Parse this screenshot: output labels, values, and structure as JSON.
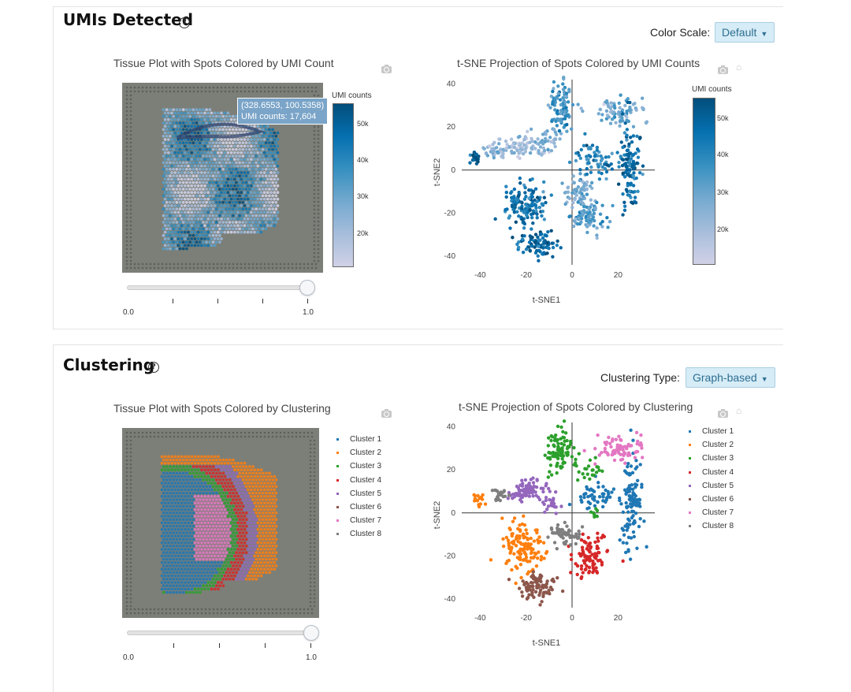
{
  "umi": {
    "title": "UMIs Detected",
    "help_glyph": "?",
    "color_scale_label": "Color Scale:",
    "color_scale_value": "Default",
    "tissue_plot_title": "Tissue Plot with Spots Colored by UMI Count",
    "tsne_plot_title": "t-SNE Projection of Spots Colored by UMI Counts",
    "colorbar_title": "UMI counts",
    "colorbar_ticks": [
      "50k",
      "40k",
      "30k",
      "20k"
    ],
    "tsne_colorbar_ticks": [
      "50k",
      "40k",
      "30k",
      "20k"
    ],
    "tooltip_coords": "(328.6553, 100.5358)",
    "tooltip_value": "UMI counts: 17,604",
    "slider_min": "0.0",
    "slider_max": "1.0",
    "slider_value": 1.0,
    "colors": [
      "#d0d1e6",
      "#a6bddb",
      "#74a9cf",
      "#3690c0",
      "#0570b0",
      "#034e7b"
    ]
  },
  "clustering": {
    "title": "Clustering",
    "help_glyph": "?",
    "type_label": "Clustering Type:",
    "type_value": "Graph-based",
    "tissue_plot_title": "Tissue Plot with Spots Colored by Clustering",
    "tsne_plot_title": "t-SNE Projection of Spots Colored by Clustering",
    "slider_min": "0.0",
    "slider_max": "1.0",
    "slider_value": 1.0,
    "clusters": [
      {
        "name": "Cluster 1",
        "color": "#1f77b4"
      },
      {
        "name": "Cluster 2",
        "color": "#ff7f0e"
      },
      {
        "name": "Cluster 3",
        "color": "#2ca02c"
      },
      {
        "name": "Cluster 4",
        "color": "#d62728"
      },
      {
        "name": "Cluster 5",
        "color": "#9467bd"
      },
      {
        "name": "Cluster 6",
        "color": "#8c564b"
      },
      {
        "name": "Cluster 7",
        "color": "#e377c2"
      },
      {
        "name": "Cluster 8",
        "color": "#7f7f7f"
      }
    ]
  },
  "chart_data": [
    {
      "type": "scatter",
      "xlabel": "t-SNE1",
      "ylabel": "t-SNE2",
      "xlim": [
        -48,
        36
      ],
      "ylim": [
        -44,
        42
      ],
      "x_ticks": [
        -40,
        -20,
        0,
        20
      ],
      "y_ticks": [
        40,
        20,
        0,
        -20,
        -40
      ],
      "x_tick_labels": [
        "-40",
        "-20",
        "0",
        "20"
      ],
      "y_tick_labels": [
        "40",
        "20",
        "0",
        "-20",
        "-40"
      ],
      "color_scale": "UMI counts",
      "legend": "colorbar right",
      "regions": [
        {
          "x": -42,
          "y": 6,
          "sx": 1.2,
          "sy": 1.2,
          "n": 22,
          "v": 0.95
        },
        {
          "x": -33,
          "y": 9,
          "sx": 3.5,
          "sy": 1.8,
          "n": 40,
          "v": 0.3
        },
        {
          "x": -22,
          "y": 11,
          "sx": 4.5,
          "sy": 2.5,
          "n": 60,
          "v": 0.2
        },
        {
          "x": -12,
          "y": 14,
          "sx": 3.5,
          "sy": 3,
          "n": 40,
          "v": 0.35
        },
        {
          "x": -5,
          "y": 28,
          "sx": 2.5,
          "sy": 6,
          "n": 90,
          "v": 0.55
        },
        {
          "x": 20,
          "y": 28,
          "sx": 5,
          "sy": 3.5,
          "n": 80,
          "v": 0.4
        },
        {
          "x": 10,
          "y": 4,
          "sx": 5,
          "sy": 4,
          "n": 70,
          "v": 0.7
        },
        {
          "x": 25,
          "y": 2,
          "sx": 2.5,
          "sy": 10,
          "n": 110,
          "v": 0.8
        },
        {
          "x": -20,
          "y": -16,
          "sx": 5,
          "sy": 6,
          "n": 140,
          "v": 0.75
        },
        {
          "x": -15,
          "y": -34,
          "sx": 5,
          "sy": 3,
          "n": 80,
          "v": 0.85
        },
        {
          "x": 3,
          "y": -10,
          "sx": 2.5,
          "sy": 3,
          "n": 60,
          "v": 0.35
        },
        {
          "x": 7,
          "y": -21,
          "sx": 4,
          "sy": 4,
          "n": 90,
          "v": 0.5
        }
      ]
    },
    {
      "type": "scatter",
      "xlabel": "t-SNE1",
      "ylabel": "t-SNE2",
      "xlim": [
        -48,
        36
      ],
      "ylim": [
        -44,
        42
      ],
      "x_ticks": [
        -40,
        -20,
        0,
        20
      ],
      "y_ticks": [
        40,
        20,
        0,
        -20,
        -40
      ],
      "x_tick_labels": [
        "-40",
        "-20",
        "0",
        "20"
      ],
      "y_tick_labels": [
        "40",
        "20",
        "0",
        "-20",
        "-40"
      ],
      "legend": "right",
      "series": [
        {
          "name": "Cluster 1",
          "regions": [
            {
              "x": 26,
              "y": 5,
              "sx": 2.5,
              "sy": 10,
              "n": 110
            },
            {
              "x": 10,
              "y": 8,
              "sx": 4,
              "sy": 3,
              "n": 50
            }
          ]
        },
        {
          "name": "Cluster 2",
          "regions": [
            {
              "x": -22,
              "y": -16,
              "sx": 4.5,
              "sy": 6,
              "n": 130
            },
            {
              "x": -40,
              "y": 6,
              "sx": 1.5,
              "sy": 1.5,
              "n": 15
            }
          ]
        },
        {
          "name": "Cluster 3",
          "regions": [
            {
              "x": -5,
              "y": 28,
              "sx": 3,
              "sy": 5,
              "n": 90
            },
            {
              "x": 7,
              "y": 19,
              "sx": 2.5,
              "sy": 2,
              "n": 20
            },
            {
              "x": 10,
              "y": 0,
              "sx": 1,
              "sy": 1,
              "n": 8
            }
          ]
        },
        {
          "name": "Cluster 4",
          "regions": [
            {
              "x": 8,
              "y": -20,
              "sx": 4,
              "sy": 4,
              "n": 90
            }
          ]
        },
        {
          "name": "Cluster 5",
          "regions": [
            {
              "x": -20,
              "y": 10,
              "sx": 5,
              "sy": 2.5,
              "n": 80
            },
            {
              "x": -8,
              "y": 4,
              "sx": 2,
              "sy": 2,
              "n": 20
            }
          ]
        },
        {
          "name": "Cluster 6",
          "regions": [
            {
              "x": -15,
              "y": -34,
              "sx": 4.5,
              "sy": 3,
              "n": 80
            }
          ]
        },
        {
          "name": "Cluster 7",
          "regions": [
            {
              "x": 20,
              "y": 30,
              "sx": 5,
              "sy": 3,
              "n": 80
            }
          ]
        },
        {
          "name": "Cluster 8",
          "regions": [
            {
              "x": -3,
              "y": -10,
              "sx": 3.5,
              "sy": 2.5,
              "n": 55
            },
            {
              "x": -31,
              "y": 8,
              "sx": 2,
              "sy": 1.5,
              "n": 20
            }
          ]
        }
      ]
    }
  ]
}
